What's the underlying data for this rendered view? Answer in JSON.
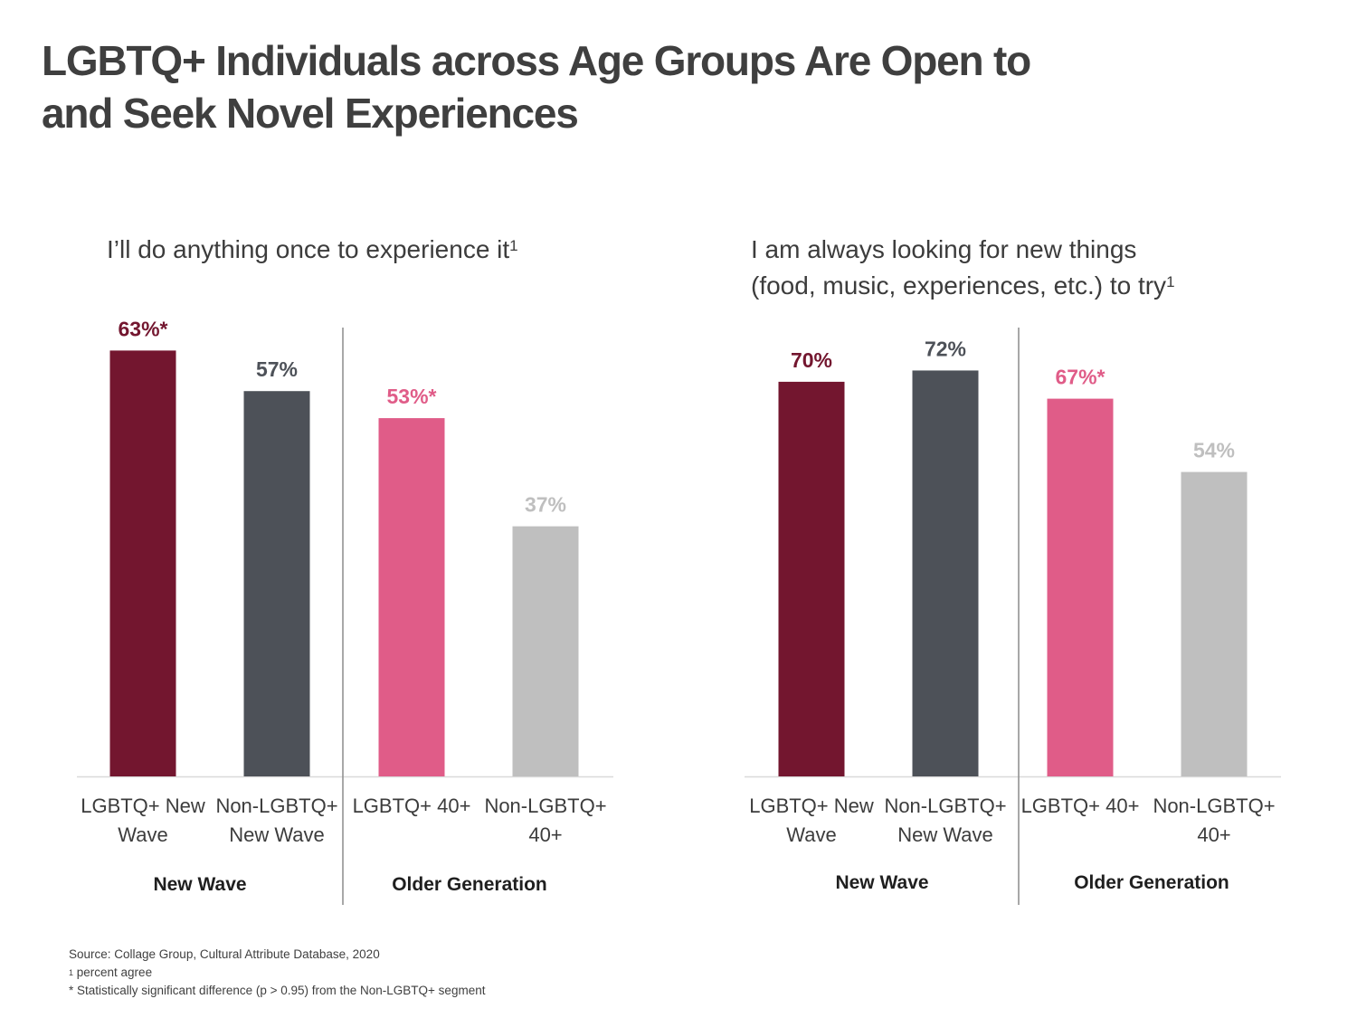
{
  "title_line1": "LGBTQ+ Individuals across Age Groups Are Open to",
  "title_line2": "and Seek Novel Experiences",
  "colors": {
    "lgbtq_new_wave": "#73162f",
    "non_lgbtq_new_wave": "#4d5158",
    "lgbtq_40": "#e05c88",
    "non_lgbtq_40": "#bfbfbf"
  },
  "footnotes": {
    "source": "Source: Collage Group, Cultural Attribute Database, 2020",
    "note1_marker": "1",
    "note1": " percent agree",
    "note2": "* Statistically significant difference (p > 0.95) from the Non-LGBTQ+ segment"
  },
  "chart_data": [
    {
      "type": "bar",
      "title": "I’ll do anything once to experience it",
      "title_sup": "1",
      "categories": [
        [
          "LGBTQ+ New",
          "Wave"
        ],
        [
          "Non-LGBTQ+",
          "New Wave"
        ],
        [
          "LGBTQ+ 40+"
        ],
        [
          "Non-LGBTQ+",
          "40+"
        ]
      ],
      "values": [
        63,
        57,
        53,
        37
      ],
      "value_labels": [
        "63%*",
        "57%",
        "53%*",
        "37%"
      ],
      "groups": [
        "New Wave",
        "Older Generation"
      ],
      "ylim": [
        0,
        100
      ],
      "grid": false
    },
    {
      "type": "bar",
      "title": "I am always looking for new things",
      "title_line2": "(food, music, experiences, etc.) to try",
      "title_sup": "1",
      "categories": [
        [
          "LGBTQ+ New",
          "Wave"
        ],
        [
          "Non-LGBTQ+",
          "New Wave"
        ],
        [
          "LGBTQ+ 40+"
        ],
        [
          "Non-LGBTQ+",
          "40+"
        ]
      ],
      "values": [
        70,
        72,
        67,
        54
      ],
      "value_labels": [
        "70%",
        "72%",
        "67%*",
        "54%"
      ],
      "groups": [
        "New Wave",
        "Older Generation"
      ],
      "ylim": [
        0,
        100
      ],
      "grid": false
    }
  ]
}
